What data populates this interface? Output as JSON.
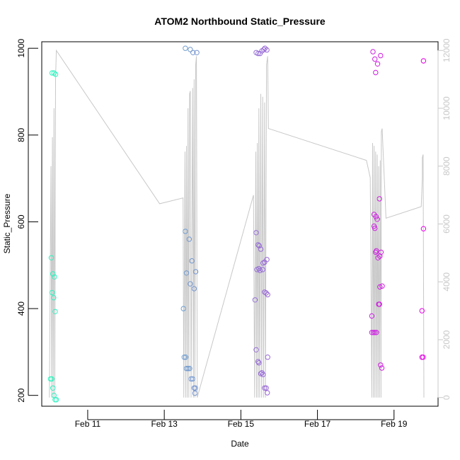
{
  "chart_data": {
    "type": "scatter",
    "title": "ATOM2 Northbound Static_Pressure",
    "xlabel": "Date",
    "ylabel": "Static_Pressure",
    "x_units": "days (February)",
    "xlim": [
      9.8,
      20.15
    ],
    "ylim": [
      175,
      1015
    ],
    "y2lim": [
      -300,
      12300
    ],
    "x_ticks": [
      {
        "value": 11,
        "label": "Feb 11"
      },
      {
        "value": 13,
        "label": "Feb 13"
      },
      {
        "value": 15,
        "label": "Feb 15"
      },
      {
        "value": 17,
        "label": "Feb 17"
      },
      {
        "value": 19,
        "label": "Feb 19"
      }
    ],
    "y_ticks": [
      200,
      400,
      600,
      800,
      1000
    ],
    "y2_ticks": [
      0,
      2000,
      4000,
      6000,
      8000,
      10000,
      12000
    ],
    "colors": {
      "line": "#c8c8c8",
      "right_axis": "#c8c8c8",
      "axis": "#000000",
      "series_start": "#2ff5c0",
      "series_end": "#e600e6"
    },
    "points": [
      [
        10.07,
        943
      ],
      [
        10.12,
        943
      ],
      [
        10.16,
        940
      ],
      [
        10.05,
        517
      ],
      [
        10.09,
        480
      ],
      [
        10.13,
        473
      ],
      [
        10.07,
        437
      ],
      [
        10.11,
        425
      ],
      [
        10.15,
        393
      ],
      [
        10.03,
        238
      ],
      [
        10.06,
        238
      ],
      [
        10.09,
        217
      ],
      [
        10.12,
        200
      ],
      [
        10.15,
        190
      ],
      [
        10.18,
        190
      ],
      [
        13.55,
        1000
      ],
      [
        13.68,
        997
      ],
      [
        13.75,
        990
      ],
      [
        13.85,
        990
      ],
      [
        13.55,
        578
      ],
      [
        13.65,
        560
      ],
      [
        13.72,
        510
      ],
      [
        13.58,
        482
      ],
      [
        13.82,
        485
      ],
      [
        13.68,
        457
      ],
      [
        13.78,
        446
      ],
      [
        13.5,
        400
      ],
      [
        13.52,
        288
      ],
      [
        13.56,
        288
      ],
      [
        13.58,
        262
      ],
      [
        13.62,
        262
      ],
      [
        13.66,
        262
      ],
      [
        13.7,
        238
      ],
      [
        13.74,
        238
      ],
      [
        13.78,
        217
      ],
      [
        13.81,
        217
      ],
      [
        13.8,
        205
      ],
      [
        15.4,
        990
      ],
      [
        15.45,
        988
      ],
      [
        15.5,
        988
      ],
      [
        15.55,
        994
      ],
      [
        15.6,
        997
      ],
      [
        15.63,
        1000
      ],
      [
        15.68,
        996
      ],
      [
        15.4,
        575
      ],
      [
        15.45,
        547
      ],
      [
        15.48,
        545
      ],
      [
        15.52,
        537
      ],
      [
        15.58,
        505
      ],
      [
        15.62,
        507
      ],
      [
        15.68,
        513
      ],
      [
        15.42,
        490
      ],
      [
        15.47,
        492
      ],
      [
        15.5,
        488
      ],
      [
        15.57,
        490
      ],
      [
        15.62,
        438
      ],
      [
        15.66,
        436
      ],
      [
        15.7,
        432
      ],
      [
        15.37,
        420
      ],
      [
        15.4,
        305
      ],
      [
        15.45,
        278
      ],
      [
        15.47,
        275
      ],
      [
        15.52,
        250
      ],
      [
        15.55,
        252
      ],
      [
        15.58,
        248
      ],
      [
        15.62,
        217
      ],
      [
        15.66,
        217
      ],
      [
        15.69,
        206
      ],
      [
        15.7,
        288
      ],
      [
        18.45,
        992
      ],
      [
        18.5,
        975
      ],
      [
        18.57,
        964
      ],
      [
        18.65,
        983
      ],
      [
        18.52,
        944
      ],
      [
        18.62,
        653
      ],
      [
        18.48,
        617
      ],
      [
        18.53,
        612
      ],
      [
        18.56,
        606
      ],
      [
        18.48,
        590
      ],
      [
        18.5,
        585
      ],
      [
        18.66,
        530
      ],
      [
        18.52,
        530
      ],
      [
        18.54,
        533
      ],
      [
        18.63,
        521
      ],
      [
        18.58,
        517
      ],
      [
        18.63,
        450
      ],
      [
        18.69,
        452
      ],
      [
        18.6,
        410
      ],
      [
        18.62,
        410
      ],
      [
        18.42,
        383
      ],
      [
        18.42,
        345
      ],
      [
        18.46,
        345
      ],
      [
        18.5,
        345
      ],
      [
        18.54,
        345
      ],
      [
        18.65,
        270
      ],
      [
        18.68,
        263
      ],
      [
        19.77,
        971
      ],
      [
        19.77,
        584
      ],
      [
        19.73,
        395
      ],
      [
        19.73,
        288
      ],
      [
        19.76,
        288
      ]
    ],
    "altitude_line": [
      [
        10.0,
        0
      ],
      [
        10.04,
        8000
      ],
      [
        10.06,
        0
      ],
      [
        10.08,
        9000
      ],
      [
        10.1,
        0
      ],
      [
        10.12,
        10000
      ],
      [
        10.14,
        0
      ],
      [
        10.16,
        11000
      ],
      [
        10.18,
        12000
      ],
      [
        12.88,
        6700
      ],
      [
        13.49,
        6900
      ],
      [
        13.51,
        0
      ],
      [
        13.54,
        8500
      ],
      [
        13.56,
        0
      ],
      [
        13.58,
        8700
      ],
      [
        13.6,
        0
      ],
      [
        13.62,
        10000
      ],
      [
        13.64,
        0
      ],
      [
        13.66,
        10500
      ],
      [
        13.68,
        10600
      ],
      [
        13.7,
        0
      ],
      [
        13.74,
        10700
      ],
      [
        13.76,
        0
      ],
      [
        13.78,
        11000
      ],
      [
        13.8,
        0
      ],
      [
        13.82,
        11500
      ],
      [
        13.84,
        11800
      ],
      [
        13.86,
        0
      ],
      [
        15.33,
        7000
      ],
      [
        15.36,
        0
      ],
      [
        15.39,
        8500
      ],
      [
        15.41,
        0
      ],
      [
        15.43,
        8800
      ],
      [
        15.45,
        0
      ],
      [
        15.47,
        10000
      ],
      [
        15.49,
        0
      ],
      [
        15.52,
        10500
      ],
      [
        15.54,
        0
      ],
      [
        15.57,
        10400
      ],
      [
        15.59,
        0
      ],
      [
        15.62,
        10200
      ],
      [
        15.64,
        0
      ],
      [
        15.67,
        11500
      ],
      [
        15.7,
        11800
      ],
      [
        15.72,
        9300
      ],
      [
        18.28,
        8200
      ],
      [
        18.38,
        7600
      ],
      [
        18.42,
        0
      ],
      [
        18.44,
        8800
      ],
      [
        18.46,
        0
      ],
      [
        18.48,
        8700
      ],
      [
        18.5,
        0
      ],
      [
        18.52,
        8500
      ],
      [
        18.54,
        0
      ],
      [
        18.56,
        8400
      ],
      [
        18.58,
        0
      ],
      [
        18.6,
        8000
      ],
      [
        18.62,
        0
      ],
      [
        18.64,
        8200
      ],
      [
        18.66,
        0
      ],
      [
        18.67,
        9200
      ],
      [
        18.69,
        9300
      ],
      [
        18.79,
        6200
      ],
      [
        19.71,
        6600
      ],
      [
        19.74,
        7600
      ],
      [
        19.74,
        8300
      ],
      [
        19.76,
        8400
      ],
      [
        19.78,
        0
      ]
    ]
  }
}
